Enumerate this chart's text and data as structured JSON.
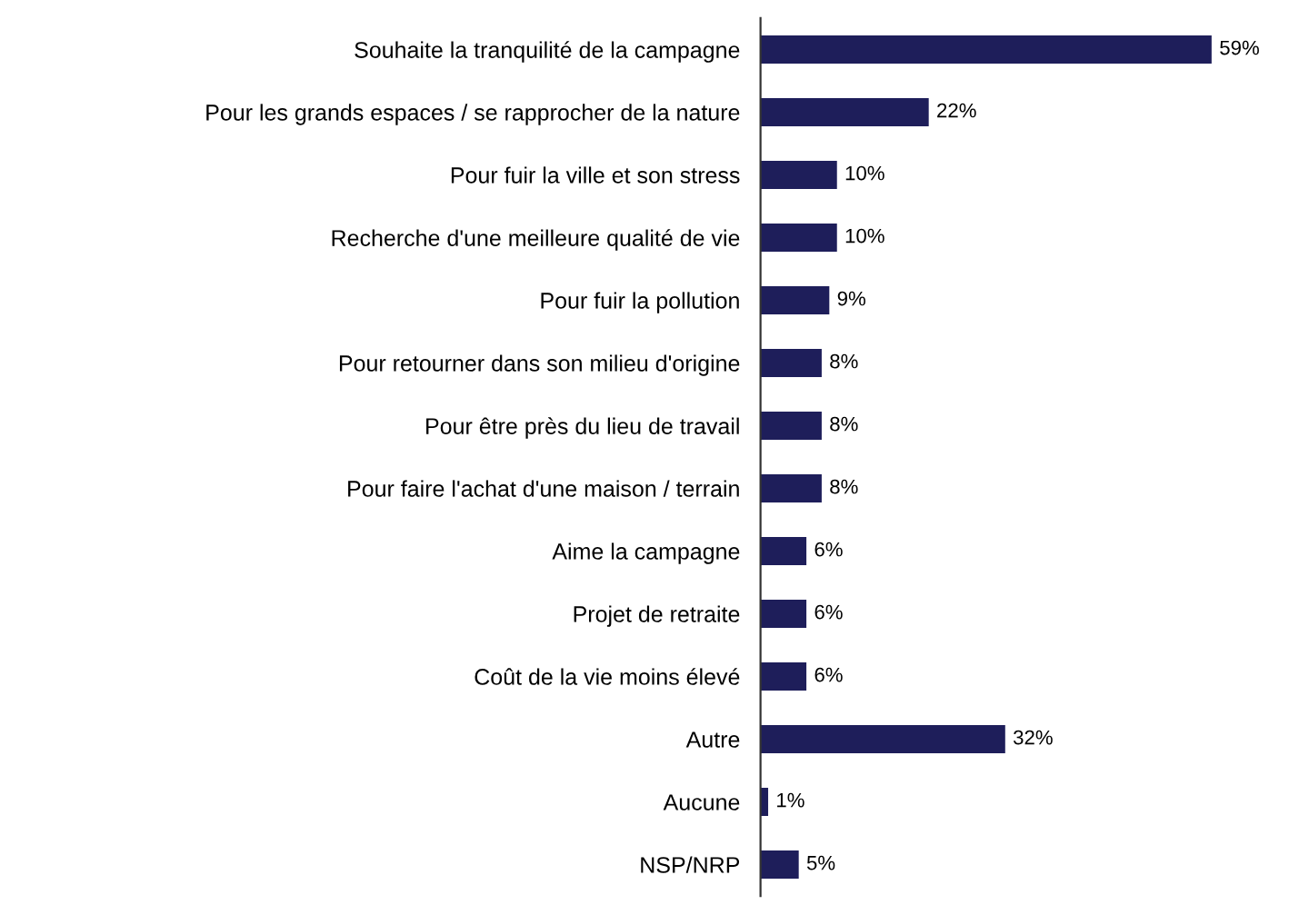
{
  "chart_data": {
    "type": "bar",
    "orientation": "horizontal",
    "categories": [
      "Souhaite la tranquilité de la campagne",
      "Pour les grands espaces / se rapprocher de la nature",
      "Pour fuir la ville et son stress",
      "Recherche d'une meilleure qualité de vie",
      "Pour fuir la pollution",
      "Pour retourner dans son milieu d'origine",
      "Pour être près du lieu de travail",
      "Pour faire l'achat d'une maison / terrain",
      "Aime la campagne",
      "Projet de retraite",
      "Coût de la vie moins élevé",
      "Autre",
      "Aucune",
      "NSP/NRP"
    ],
    "values": [
      59,
      22,
      10,
      10,
      9,
      8,
      8,
      8,
      6,
      6,
      6,
      32,
      1,
      5
    ],
    "value_labels": [
      "59%",
      "22%",
      "10%",
      "10%",
      "9%",
      "8%",
      "8%",
      "8%",
      "6%",
      "6%",
      "6%",
      "32%",
      "1%",
      "5%"
    ],
    "color": "#1e1e5a",
    "grid": false,
    "legend": false
  }
}
